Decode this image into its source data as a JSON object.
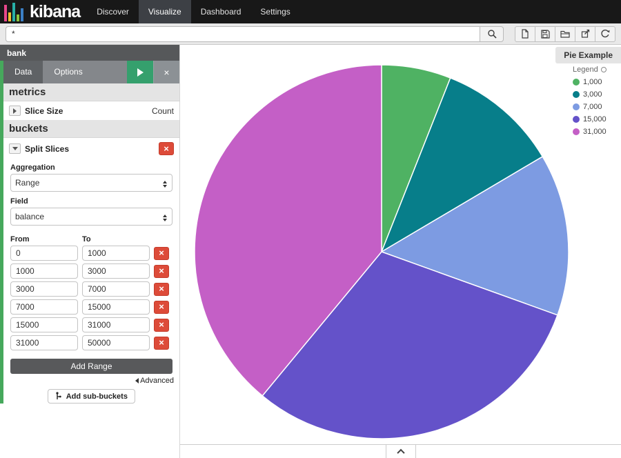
{
  "navbar": {
    "brand": "kibana",
    "items": [
      {
        "label": "Discover",
        "active": false
      },
      {
        "label": "Visualize",
        "active": true
      },
      {
        "label": "Dashboard",
        "active": false
      },
      {
        "label": "Settings",
        "active": false
      }
    ]
  },
  "toolbar": {
    "query": "*",
    "icons": {
      "search": "magnifier",
      "new": "new-document",
      "save": "floppy-disk",
      "open": "open-folder",
      "share": "export-arrow",
      "refresh": "circular-arrow"
    }
  },
  "sidebar": {
    "index": "bank",
    "tabs": [
      {
        "label": "Data",
        "active": true
      },
      {
        "label": "Options",
        "active": false
      }
    ],
    "apply_icon": "play-triangle",
    "discard_icon": "close-x",
    "metrics": {
      "title": "metrics",
      "slice_size_label": "Slice Size",
      "slice_size_value": "Count"
    },
    "buckets": {
      "title": "buckets",
      "bucket_label": "Split Slices",
      "aggregation_label": "Aggregation",
      "aggregation_value": "Range",
      "field_label": "Field",
      "field_value": "balance",
      "from_label": "From",
      "to_label": "To",
      "ranges": [
        {
          "from": "0",
          "to": "1000"
        },
        {
          "from": "1000",
          "to": "3000"
        },
        {
          "from": "3000",
          "to": "7000"
        },
        {
          "from": "7000",
          "to": "15000"
        },
        {
          "from": "15000",
          "to": "31000"
        },
        {
          "from": "31000",
          "to": "50000"
        }
      ],
      "add_range_label": "Add Range",
      "advanced_label": "Advanced",
      "add_subbuckets_label": "Add sub-buckets"
    }
  },
  "main": {
    "title": "Pie Example",
    "legend_title": "Legend"
  },
  "chart_data": {
    "type": "pie",
    "title": "Pie Example",
    "legend_position": "right",
    "direction": "clockwise",
    "start_angle_deg": 0,
    "slices": [
      {
        "label": "1,000",
        "percent": 6,
        "color": "#4fb263"
      },
      {
        "label": "3,000",
        "percent": 10.5,
        "color": "#077e8a"
      },
      {
        "label": "7,000",
        "percent": 14,
        "color": "#7d9be2"
      },
      {
        "label": "15,000",
        "percent": 30.5,
        "color": "#6452c9"
      },
      {
        "label": "31,000",
        "percent": 39,
        "color": "#c45fc6"
      }
    ]
  }
}
